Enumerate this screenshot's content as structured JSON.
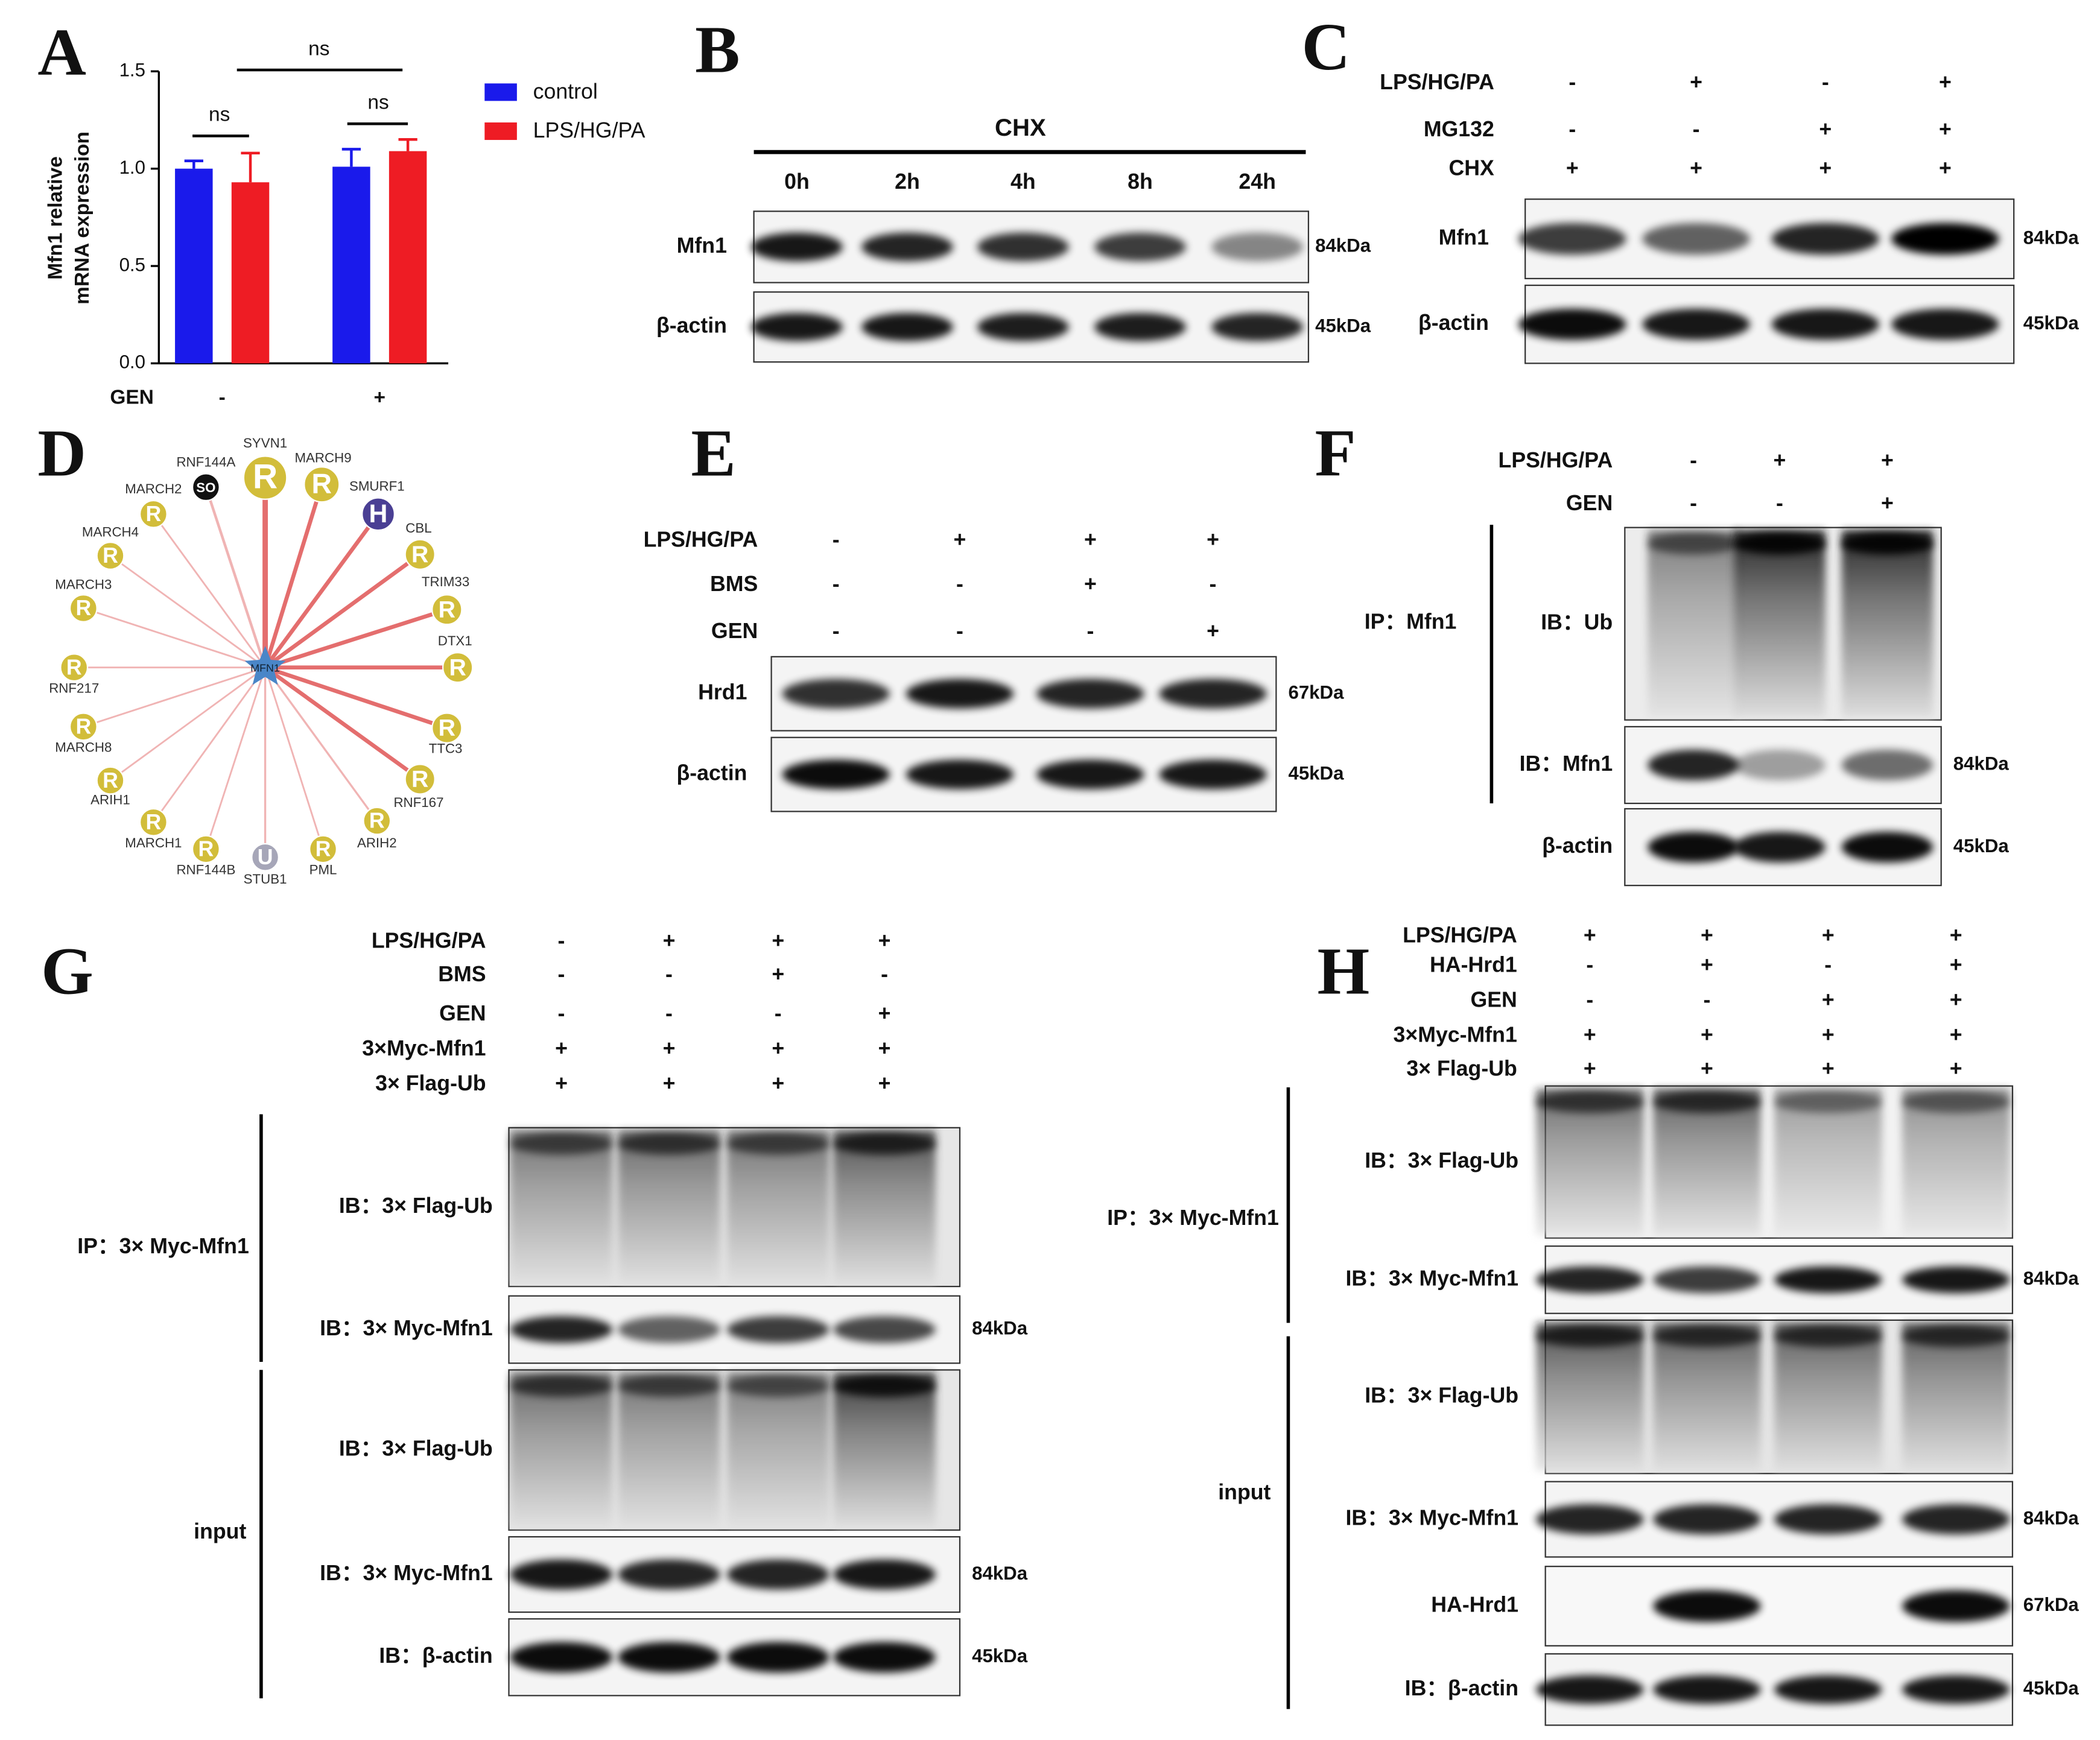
{
  "chart_data": {
    "type": "bar",
    "letter": "A",
    "y_label": [
      "Mfn1 relative",
      "mRNA expression"
    ],
    "x_label": "GEN",
    "categories": [
      "-",
      "+"
    ],
    "series": [
      {
        "name": "control",
        "color": "#1a1aeb",
        "values": [
          1.0,
          1.01
        ],
        "errors": [
          0.04,
          0.09
        ]
      },
      {
        "name": "LPS/HG/PA",
        "color": "#ee1c24",
        "values": [
          0.93,
          1.09
        ],
        "errors": [
          0.15,
          0.06
        ]
      }
    ],
    "ylim": [
      0,
      1.5
    ],
    "yticks": [
      {
        "value": 0,
        "label": "0.0"
      },
      0.5,
      {
        "value": 1,
        "label": "1.0"
      },
      1.5
    ],
    "annotations": [
      "ns",
      "ns",
      "ns"
    ]
  },
  "panel_b": {
    "letter": "B",
    "treatment": "CHX",
    "timepoints": [
      "0h",
      "2h",
      "4h",
      "8h",
      "24h"
    ],
    "rows": [
      {
        "label": "Mfn1",
        "size": "84kDa"
      },
      {
        "label": "β-actin",
        "size": "45kDa"
      }
    ]
  },
  "panel_c": {
    "letter": "C",
    "conditions": [
      {
        "name": "LPS/HG/PA",
        "signs": [
          "-",
          "+",
          "-",
          "+"
        ]
      },
      {
        "name": "MG132",
        "signs": [
          "-",
          "-",
          "+",
          "+"
        ]
      },
      {
        "name": "CHX",
        "signs": [
          "+",
          "+",
          "+",
          "+"
        ]
      }
    ],
    "rows": [
      {
        "label": "Mfn1",
        "size": "84kDa"
      },
      {
        "label": "β-actin",
        "size": "45kDa"
      }
    ]
  },
  "panel_d": {
    "letter": "D",
    "center": "MFN1",
    "nodes": [
      {
        "label": "SYVN1",
        "icon": "R"
      },
      {
        "label": "RNF144A",
        "icon": "SO"
      },
      {
        "label": "MARCH9",
        "icon": "R"
      },
      {
        "label": "SMURF1",
        "icon": "H"
      },
      {
        "label": "MARCH2",
        "icon": "R"
      },
      {
        "label": "CBL",
        "icon": "R"
      },
      {
        "label": "MARCH4",
        "icon": "R"
      },
      {
        "label": "TRIM33",
        "icon": "R"
      },
      {
        "label": "MARCH3",
        "icon": "R"
      },
      {
        "label": "DTX1",
        "icon": "R"
      },
      {
        "label": "RNF217",
        "icon": "R"
      },
      {
        "label": "TTC3",
        "icon": "R"
      },
      {
        "label": "MARCH8",
        "icon": "R"
      },
      {
        "label": "RNF167",
        "icon": "R"
      },
      {
        "label": "ARIH1",
        "icon": "R"
      },
      {
        "label": "ARIH2",
        "icon": "R"
      },
      {
        "label": "MARCH1",
        "icon": "R"
      },
      {
        "label": "PML",
        "icon": "R"
      },
      {
        "label": "RNF144B",
        "icon": "R"
      },
      {
        "label": "STUB1",
        "icon": "U"
      }
    ]
  },
  "panel_e": {
    "letter": "E",
    "conditions": [
      {
        "name": "LPS/HG/PA",
        "signs": [
          "-",
          "+",
          "+",
          "+"
        ]
      },
      {
        "name": "BMS",
        "signs": [
          "-",
          "-",
          "+",
          "-"
        ]
      },
      {
        "name": "GEN",
        "signs": [
          "-",
          "-",
          "-",
          "+"
        ]
      }
    ],
    "rows": [
      {
        "label": "Hrd1",
        "size": "67kDa"
      },
      {
        "label": "β-actin",
        "size": "45kDa"
      }
    ]
  },
  "panel_f": {
    "letter": "F",
    "conditions": [
      {
        "name": "LPS/HG/PA",
        "signs": [
          "-",
          "+",
          "+"
        ]
      },
      {
        "name": "GEN",
        "signs": [
          "-",
          "-",
          "+"
        ]
      }
    ],
    "groups": [
      {
        "label": "IP：Mfn1"
      }
    ],
    "rows": [
      {
        "label": "IB：Ub"
      },
      {
        "label": "IB：Mfn1",
        "size": "84kDa"
      },
      {
        "label": "β-actin",
        "size": "45kDa"
      }
    ]
  },
  "panel_g": {
    "letter": "G",
    "conditions": [
      {
        "name": "LPS/HG/PA",
        "signs": [
          "-",
          "+",
          "+",
          "+"
        ]
      },
      {
        "name": "BMS",
        "signs": [
          "-",
          "-",
          "+",
          "-"
        ]
      },
      {
        "name": "GEN",
        "signs": [
          "-",
          "-",
          "-",
          "+"
        ]
      },
      {
        "name": "3×Myc-Mfn1",
        "signs": [
          "+",
          "+",
          "+",
          "+"
        ]
      },
      {
        "name": "3× Flag-Ub",
        "signs": [
          "+",
          "+",
          "+",
          "+"
        ]
      }
    ],
    "groups": [
      {
        "label": "IP：3× Myc-Mfn1"
      },
      {
        "label": "input"
      }
    ],
    "rows": [
      {
        "label": "IB：3× Flag-Ub"
      },
      {
        "label": "IB：3× Myc-Mfn1",
        "size": "84kDa"
      },
      {
        "label": "IB：3× Flag-Ub"
      },
      {
        "label": "IB：3× Myc-Mfn1",
        "size": "84kDa"
      },
      {
        "label": "IB：β-actin",
        "size": "45kDa"
      }
    ]
  },
  "panel_h": {
    "letter": "H",
    "conditions": [
      {
        "name": "LPS/HG/PA",
        "signs": [
          "+",
          "+",
          "+",
          "+"
        ]
      },
      {
        "name": "HA-Hrd1",
        "signs": [
          "-",
          "+",
          "-",
          "+"
        ]
      },
      {
        "name": "GEN",
        "signs": [
          "-",
          "-",
          "+",
          "+"
        ]
      },
      {
        "name": "3×Myc-Mfn1",
        "signs": [
          "+",
          "+",
          "+",
          "+"
        ]
      },
      {
        "name": "3× Flag-Ub",
        "signs": [
          "+",
          "+",
          "+",
          "+"
        ]
      }
    ],
    "groups": [
      {
        "label": "IP：3× Myc-Mfn1"
      },
      {
        "label": "input"
      }
    ],
    "rows": [
      {
        "label": "IB：3× Flag-Ub"
      },
      {
        "label": "IB：3× Myc-Mfn1",
        "size": "84kDa"
      },
      {
        "label": "IB：3× Flag-Ub"
      },
      {
        "label": "IB：3× Myc-Mfn1",
        "size": "84kDa"
      },
      {
        "label": "HA-Hrd1",
        "size": "67kDa"
      },
      {
        "label": "IB：β-actin",
        "size": "45kDa"
      }
    ]
  }
}
